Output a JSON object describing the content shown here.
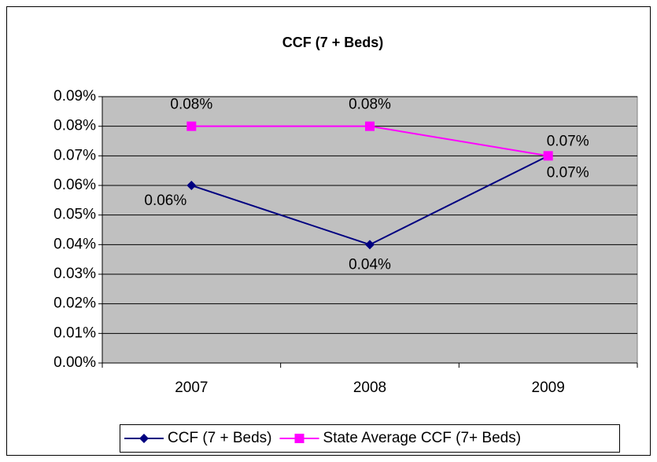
{
  "chart_data": {
    "type": "line",
    "title": "CCF (7 + Beds)",
    "categories": [
      "2007",
      "2008",
      "2009"
    ],
    "series": [
      {
        "name": "CCF (7 + Beds)",
        "color": "#000080",
        "marker": "diamond",
        "values": [
          0.06,
          0.04,
          0.07
        ],
        "value_labels": [
          "0.06%",
          "0.04%",
          "0.07%"
        ]
      },
      {
        "name": "State Average CCF (7+ Beds)",
        "color": "#ff00ff",
        "marker": "square",
        "values": [
          0.08,
          0.08,
          0.07
        ],
        "value_labels": [
          "0.08%",
          "0.08%",
          "0.07%"
        ]
      }
    ],
    "ylim": [
      0,
      0.09
    ],
    "yticks": [
      {
        "value": 0,
        "label": "0.00%"
      },
      {
        "value": 0.01,
        "label": "0.01%"
      },
      {
        "value": 0.02,
        "label": "0.02%"
      },
      {
        "value": 0.03,
        "label": "0.03%"
      },
      {
        "value": 0.04,
        "label": "0.04%"
      },
      {
        "value": 0.05,
        "label": "0.05%"
      },
      {
        "value": 0.06,
        "label": "0.06%"
      },
      {
        "value": 0.07,
        "label": "0.07%"
      },
      {
        "value": 0.08,
        "label": "0.08%"
      },
      {
        "value": 0.09,
        "label": "0.09%"
      }
    ],
    "grid": true,
    "plot_background": "#c0c0c0",
    "legend": "bottom"
  }
}
